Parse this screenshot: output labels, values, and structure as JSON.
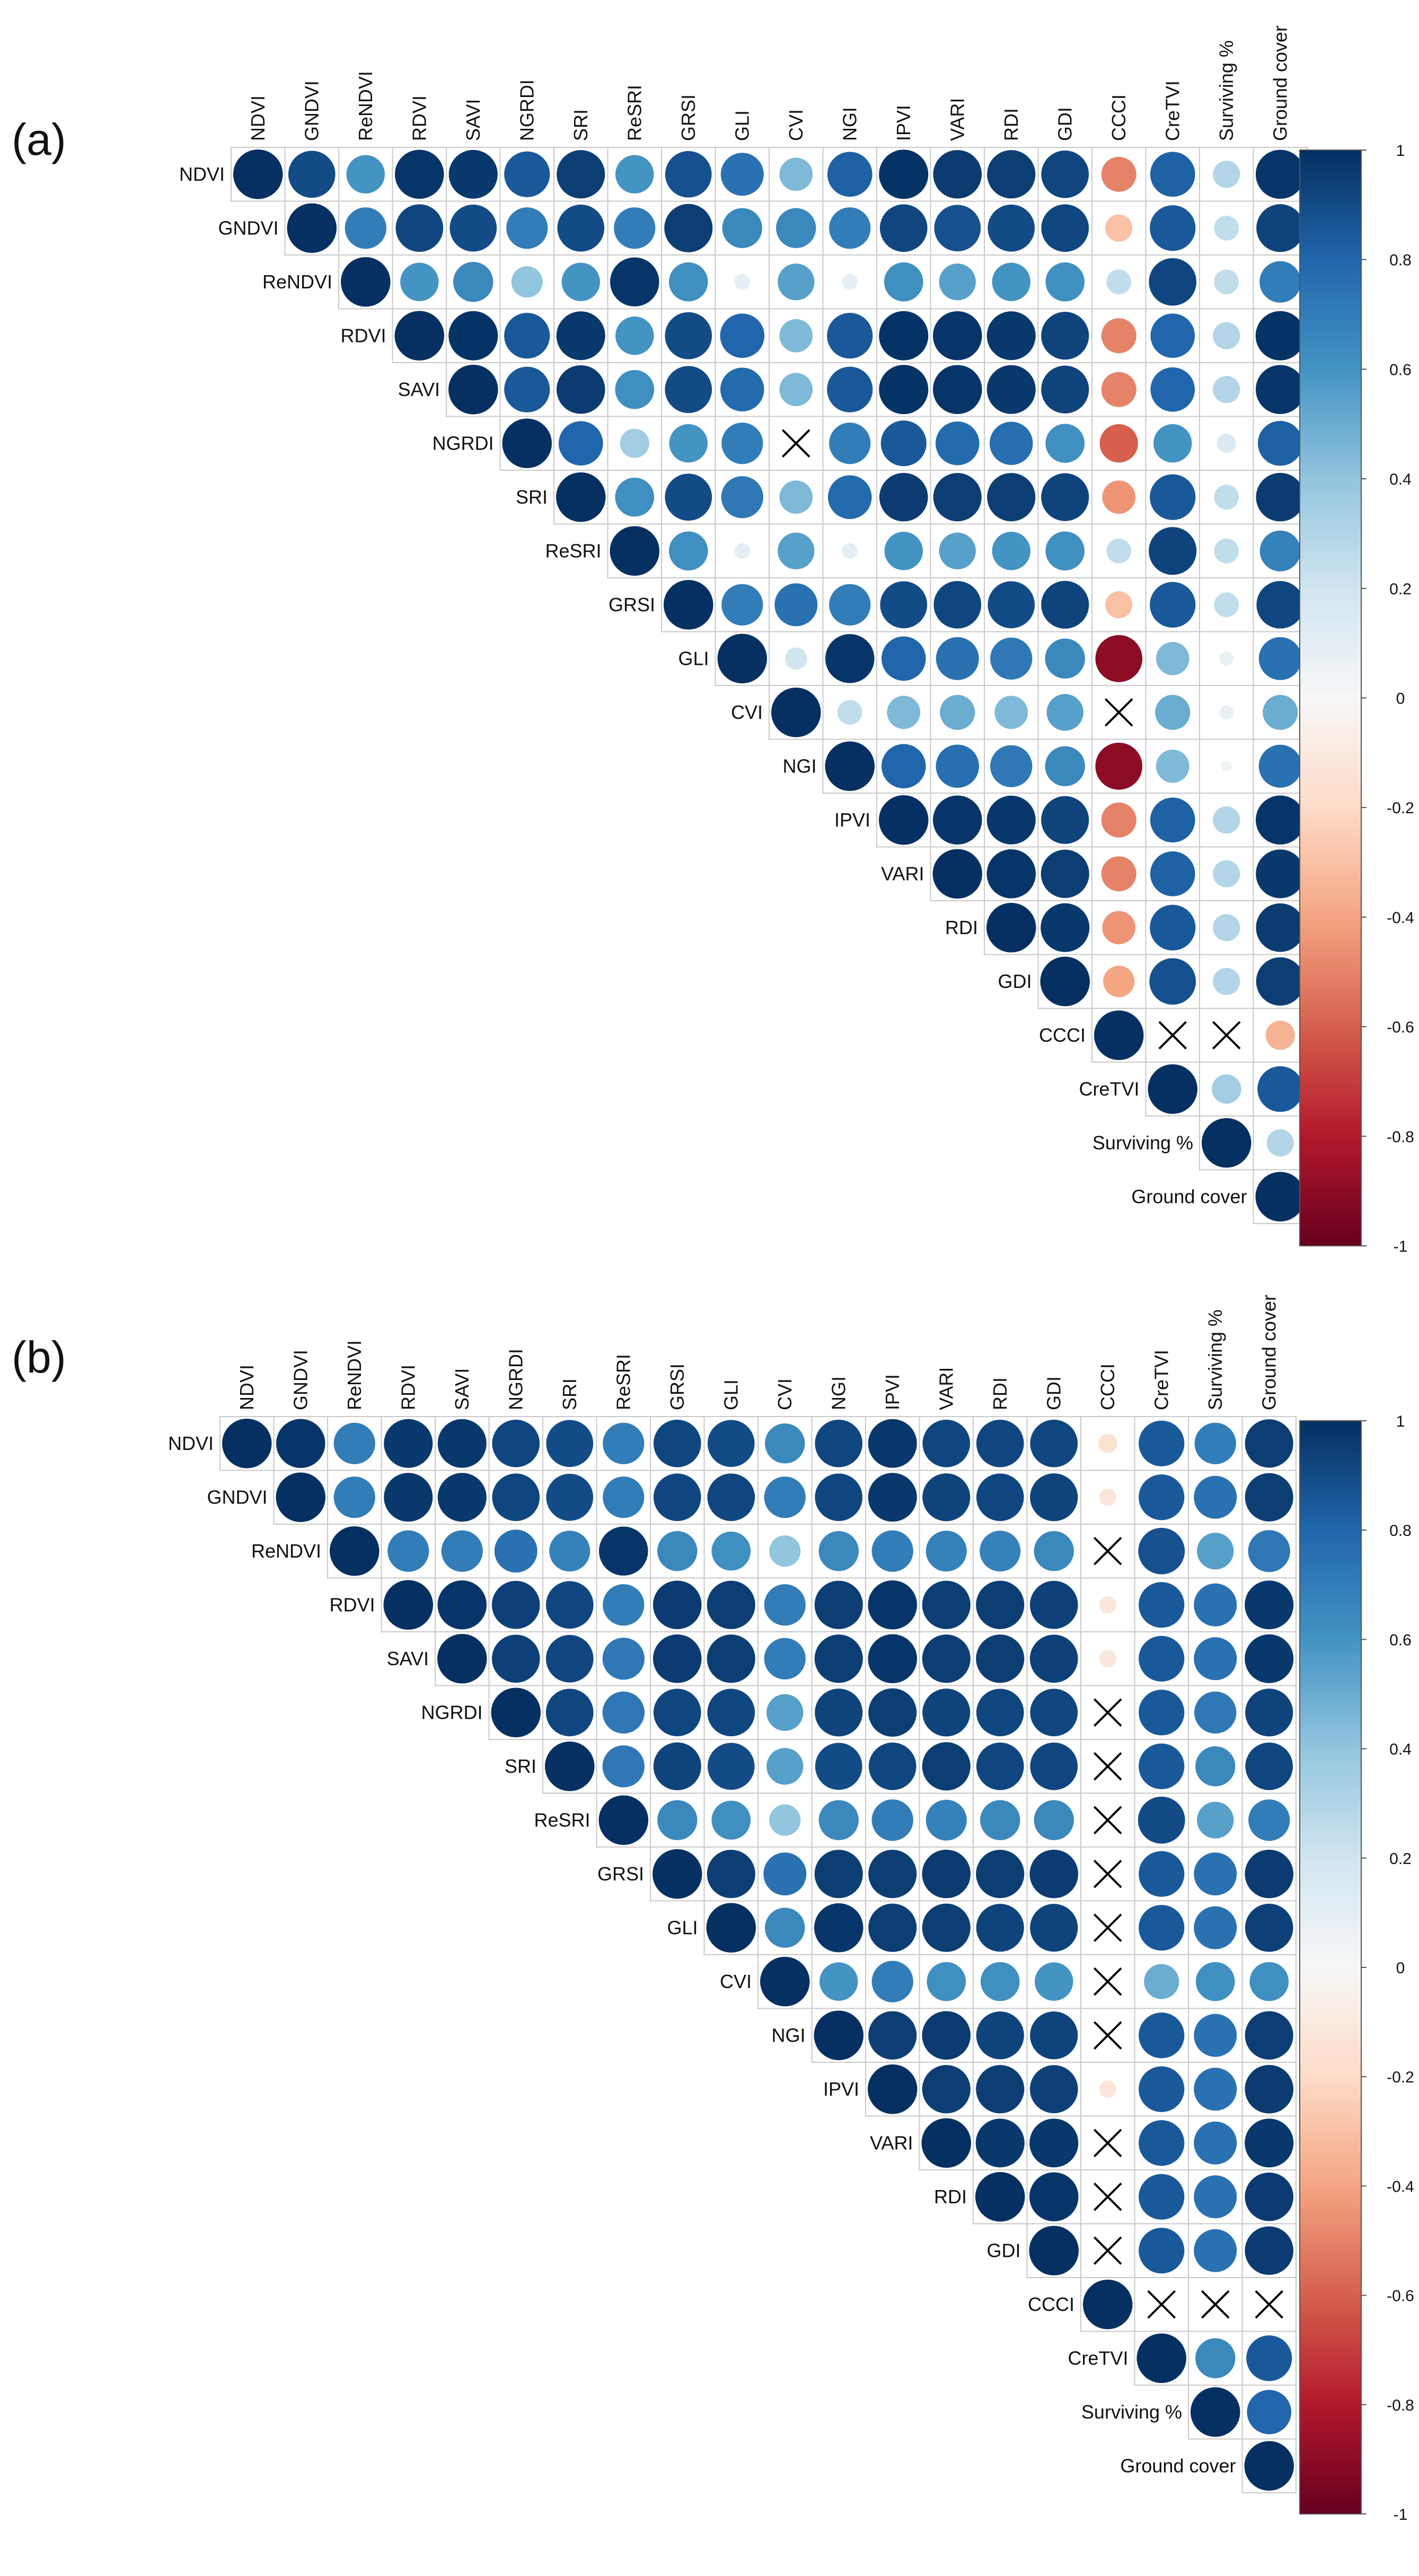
{
  "figure": {
    "panel_labels": [
      "(a)",
      "(b)"
    ]
  },
  "chart_data": [
    {
      "type": "heatmap",
      "panel": "(a)",
      "style": "correlation-circle-upper-triangle",
      "variables": [
        "NDVI",
        "GNDVI",
        "ReNDVI",
        "RDVI",
        "SAVI",
        "NGRDI",
        "SRI",
        "ReSRI",
        "GRSI",
        "GLI",
        "CVI",
        "NGI",
        "IPVI",
        "VARI",
        "RDI",
        "GDI",
        "CCCI",
        "CreTVI",
        "Surviving %",
        "Ground cover"
      ],
      "colorbar_ticks": [
        "1",
        "0.8",
        "0.6",
        "0.4",
        "0.2",
        "0",
        "-0.2",
        "-0.4",
        "-0.6",
        "-0.8",
        "-1"
      ],
      "colorbar_range": [
        -1,
        1
      ],
      "blank_marker": "X = non-significant",
      "matrix": [
        [
          1,
          0.9,
          0.6,
          0.98,
          0.97,
          0.85,
          0.95,
          0.6,
          0.88,
          0.75,
          0.45,
          0.82,
          0.99,
          0.96,
          0.95,
          0.92,
          -0.5,
          0.82,
          0.3,
          0.98
        ],
        [
          null,
          1,
          0.7,
          0.92,
          0.9,
          0.7,
          0.9,
          0.7,
          0.95,
          0.65,
          0.65,
          0.7,
          0.92,
          0.88,
          0.9,
          0.92,
          -0.3,
          0.85,
          0.25,
          0.93
        ],
        [
          null,
          null,
          1,
          0.6,
          0.65,
          0.4,
          0.6,
          0.98,
          0.62,
          0.1,
          0.55,
          0.1,
          0.62,
          0.55,
          0.6,
          0.62,
          0.25,
          0.92,
          0.25,
          0.7
        ],
        [
          null,
          null,
          null,
          1,
          0.99,
          0.85,
          0.97,
          0.6,
          0.9,
          0.8,
          0.45,
          0.85,
          0.99,
          0.98,
          0.97,
          0.93,
          -0.5,
          0.8,
          0.3,
          0.99
        ],
        [
          null,
          null,
          null,
          null,
          1,
          0.85,
          0.96,
          0.62,
          0.9,
          0.78,
          0.45,
          0.85,
          0.99,
          0.98,
          0.97,
          0.93,
          -0.5,
          0.8,
          0.3,
          0.98
        ],
        [
          null,
          null,
          null,
          null,
          null,
          1,
          0.8,
          0.35,
          0.6,
          0.7,
          null,
          0.7,
          0.85,
          0.78,
          0.76,
          0.62,
          -0.6,
          0.6,
          0.15,
          0.82
        ],
        [
          null,
          null,
          null,
          null,
          null,
          null,
          1,
          0.62,
          0.9,
          0.72,
          0.45,
          0.78,
          0.96,
          0.95,
          0.95,
          0.93,
          -0.45,
          0.85,
          0.25,
          0.96
        ],
        [
          null,
          null,
          null,
          null,
          null,
          null,
          null,
          1,
          0.62,
          0.1,
          0.55,
          0.1,
          0.6,
          0.55,
          0.6,
          0.62,
          0.25,
          0.93,
          0.25,
          0.68
        ],
        [
          null,
          null,
          null,
          null,
          null,
          null,
          null,
          null,
          1,
          0.7,
          0.75,
          0.7,
          0.9,
          0.92,
          0.9,
          0.93,
          -0.3,
          0.85,
          0.25,
          0.92
        ],
        [
          null,
          null,
          null,
          null,
          null,
          null,
          null,
          null,
          null,
          1,
          0.2,
          0.98,
          0.8,
          0.75,
          0.72,
          0.65,
          -0.9,
          0.45,
          0.08,
          0.75
        ],
        [
          null,
          null,
          null,
          null,
          null,
          null,
          null,
          null,
          null,
          null,
          1,
          0.25,
          0.45,
          0.5,
          0.45,
          0.55,
          null,
          0.5,
          0.08,
          0.5
        ],
        [
          null,
          null,
          null,
          null,
          null,
          null,
          null,
          null,
          null,
          null,
          null,
          1,
          0.8,
          0.76,
          0.72,
          0.65,
          -0.9,
          0.45,
          0.05,
          0.75
        ],
        [
          null,
          null,
          null,
          null,
          null,
          null,
          null,
          null,
          null,
          null,
          null,
          null,
          1,
          0.98,
          0.97,
          0.93,
          -0.5,
          0.82,
          0.3,
          0.98
        ],
        [
          null,
          null,
          null,
          null,
          null,
          null,
          null,
          null,
          null,
          null,
          null,
          null,
          null,
          1,
          0.98,
          0.95,
          -0.5,
          0.82,
          0.3,
          0.97
        ],
        [
          null,
          null,
          null,
          null,
          null,
          null,
          null,
          null,
          null,
          null,
          null,
          null,
          null,
          null,
          1,
          0.97,
          -0.45,
          0.85,
          0.3,
          0.96
        ],
        [
          null,
          null,
          null,
          null,
          null,
          null,
          null,
          null,
          null,
          null,
          null,
          null,
          null,
          null,
          null,
          1,
          -0.4,
          0.88,
          0.3,
          0.95
        ],
        [
          null,
          null,
          null,
          null,
          null,
          null,
          null,
          null,
          null,
          null,
          null,
          null,
          null,
          null,
          null,
          null,
          1,
          null,
          null,
          -0.35
        ],
        [
          null,
          null,
          null,
          null,
          null,
          null,
          null,
          null,
          null,
          null,
          null,
          null,
          null,
          null,
          null,
          null,
          null,
          1,
          0.35,
          0.85
        ],
        [
          null,
          null,
          null,
          null,
          null,
          null,
          null,
          null,
          null,
          null,
          null,
          null,
          null,
          null,
          null,
          null,
          null,
          null,
          1,
          0.3
        ],
        [
          null,
          null,
          null,
          null,
          null,
          null,
          null,
          null,
          null,
          null,
          null,
          null,
          null,
          null,
          null,
          null,
          null,
          null,
          null,
          1
        ]
      ]
    },
    {
      "type": "heatmap",
      "panel": "(b)",
      "style": "correlation-circle-upper-triangle",
      "variables": [
        "NDVI",
        "GNDVI",
        "ReNDVI",
        "RDVI",
        "SAVI",
        "NGRDI",
        "SRI",
        "ReSRI",
        "GRSI",
        "GLI",
        "CVI",
        "NGI",
        "IPVI",
        "VARI",
        "RDI",
        "GDI",
        "CCCI",
        "CreTVI",
        "Surviving %",
        "Ground cover"
      ],
      "colorbar_ticks": [
        "1",
        "0.8",
        "0.6",
        "0.4",
        "0.2",
        "0",
        "-0.2",
        "-0.4",
        "-0.6",
        "-0.8",
        "-1"
      ],
      "colorbar_range": [
        -1,
        1
      ],
      "blank_marker": "X = non-significant",
      "matrix": [
        [
          1,
          0.98,
          0.7,
          0.97,
          0.97,
          0.92,
          0.9,
          0.7,
          0.92,
          0.9,
          0.65,
          0.92,
          0.97,
          0.92,
          0.92,
          0.92,
          -0.15,
          0.85,
          0.7,
          0.95
        ],
        [
          null,
          1,
          0.7,
          0.97,
          0.97,
          0.92,
          0.9,
          0.7,
          0.92,
          0.92,
          0.7,
          0.92,
          0.97,
          0.93,
          0.92,
          0.93,
          -0.12,
          0.85,
          0.75,
          0.95
        ],
        [
          null,
          null,
          1,
          0.7,
          0.7,
          0.75,
          0.68,
          0.98,
          0.65,
          0.62,
          0.4,
          0.65,
          0.7,
          0.68,
          0.68,
          0.65,
          null,
          0.88,
          0.55,
          0.72
        ],
        [
          null,
          null,
          null,
          1,
          0.98,
          0.94,
          0.92,
          0.7,
          0.96,
          0.95,
          0.7,
          0.95,
          0.98,
          0.95,
          0.95,
          0.94,
          -0.12,
          0.85,
          0.75,
          0.97
        ],
        [
          null,
          null,
          null,
          null,
          1,
          0.94,
          0.92,
          0.72,
          0.96,
          0.95,
          0.7,
          0.95,
          0.98,
          0.95,
          0.95,
          0.94,
          -0.12,
          0.85,
          0.75,
          0.97
        ],
        [
          null,
          null,
          null,
          null,
          null,
          1,
          0.92,
          0.72,
          0.92,
          0.92,
          0.55,
          0.93,
          0.95,
          0.93,
          0.92,
          0.92,
          null,
          0.85,
          0.72,
          0.93
        ],
        [
          null,
          null,
          null,
          null,
          null,
          null,
          1,
          0.72,
          0.93,
          0.9,
          0.55,
          0.9,
          0.92,
          0.95,
          0.92,
          0.92,
          null,
          0.85,
          0.65,
          0.92
        ],
        [
          null,
          null,
          null,
          null,
          null,
          null,
          null,
          1,
          0.65,
          0.62,
          0.4,
          0.65,
          0.7,
          0.68,
          0.65,
          0.65,
          null,
          0.9,
          0.55,
          0.7
        ],
        [
          null,
          null,
          null,
          null,
          null,
          null,
          null,
          null,
          1,
          0.95,
          0.75,
          0.95,
          0.95,
          0.96,
          0.95,
          0.96,
          null,
          0.85,
          0.75,
          0.96
        ],
        [
          null,
          null,
          null,
          null,
          null,
          null,
          null,
          null,
          null,
          1,
          0.65,
          0.98,
          0.95,
          0.95,
          0.93,
          0.93,
          null,
          0.85,
          0.75,
          0.94
        ],
        [
          null,
          null,
          null,
          null,
          null,
          null,
          null,
          null,
          null,
          null,
          1,
          0.6,
          0.7,
          0.62,
          0.62,
          0.6,
          null,
          0.5,
          0.62,
          0.62
        ],
        [
          null,
          null,
          null,
          null,
          null,
          null,
          null,
          null,
          null,
          null,
          null,
          1,
          0.95,
          0.96,
          0.93,
          0.93,
          null,
          0.85,
          0.75,
          0.95
        ],
        [
          null,
          null,
          null,
          null,
          null,
          null,
          null,
          null,
          null,
          null,
          null,
          null,
          1,
          0.95,
          0.95,
          0.94,
          -0.12,
          0.85,
          0.75,
          0.96
        ],
        [
          null,
          null,
          null,
          null,
          null,
          null,
          null,
          null,
          null,
          null,
          null,
          null,
          null,
          1,
          0.97,
          0.97,
          null,
          0.85,
          0.75,
          0.97
        ],
        [
          null,
          null,
          null,
          null,
          null,
          null,
          null,
          null,
          null,
          null,
          null,
          null,
          null,
          null,
          1,
          0.98,
          null,
          0.85,
          0.75,
          0.96
        ],
        [
          null,
          null,
          null,
          null,
          null,
          null,
          null,
          null,
          null,
          null,
          null,
          null,
          null,
          null,
          null,
          1,
          null,
          0.85,
          0.75,
          0.96
        ],
        [
          null,
          null,
          null,
          null,
          null,
          null,
          null,
          null,
          null,
          null,
          null,
          null,
          null,
          null,
          null,
          null,
          1,
          null,
          null,
          null
        ],
        [
          null,
          null,
          null,
          null,
          null,
          null,
          null,
          null,
          null,
          null,
          null,
          null,
          null,
          null,
          null,
          null,
          null,
          1,
          0.65,
          0.85
        ],
        [
          null,
          null,
          null,
          null,
          null,
          null,
          null,
          null,
          null,
          null,
          null,
          null,
          null,
          null,
          null,
          null,
          null,
          null,
          1,
          0.8
        ],
        [
          null,
          null,
          null,
          null,
          null,
          null,
          null,
          null,
          null,
          null,
          null,
          null,
          null,
          null,
          null,
          null,
          null,
          null,
          null,
          1
        ]
      ]
    }
  ]
}
